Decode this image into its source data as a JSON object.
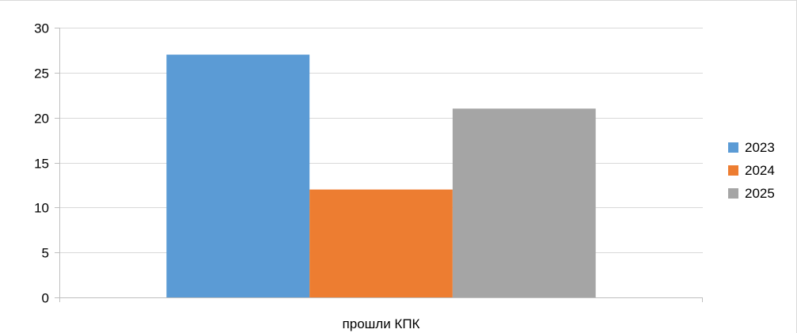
{
  "chart_data": {
    "type": "bar",
    "categories": [
      "прошли КПК"
    ],
    "series": [
      {
        "name": "2023",
        "values": [
          27
        ],
        "color": "#5b9bd5"
      },
      {
        "name": "2024",
        "values": [
          12
        ],
        "color": "#ed7d31"
      },
      {
        "name": "2025",
        "values": [
          21
        ],
        "color": "#a5a5a5"
      }
    ],
    "ylim": [
      0,
      30
    ],
    "yticks": [
      0,
      5,
      10,
      15,
      20,
      25,
      30
    ],
    "grid": true,
    "legend_position": "right",
    "title": "",
    "xlabel": "",
    "ylabel": ""
  }
}
